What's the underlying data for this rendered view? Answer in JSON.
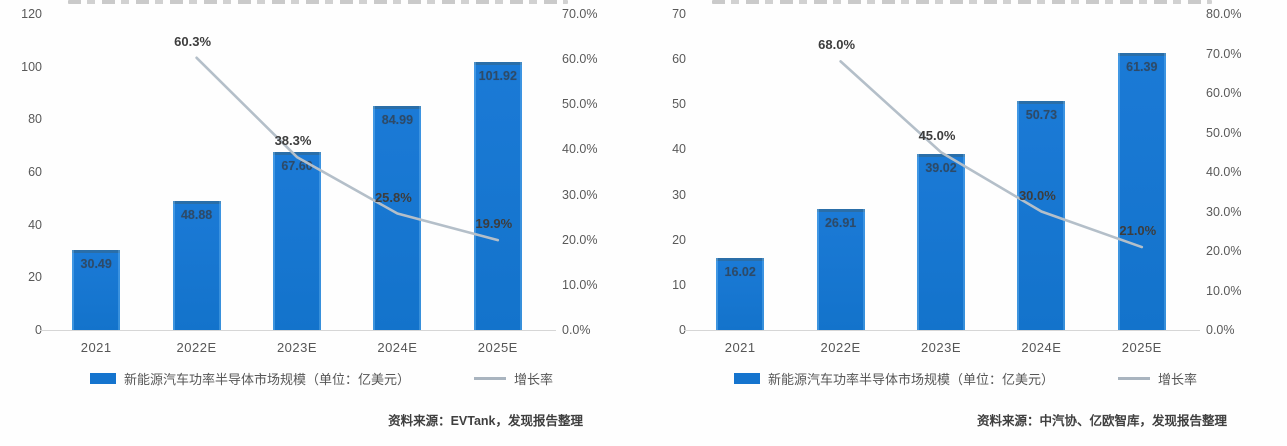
{
  "colors": {
    "bar": "#1574ce",
    "growth_line": "#b4bfc9",
    "axis_text": "#595959",
    "value_label": "#31465c",
    "pct_label": "#3d3d3d",
    "source_text": "#3f3f3f"
  },
  "chart_data": [
    {
      "type": "bar+line",
      "categories": [
        "2021",
        "2022E",
        "2023E",
        "2024E",
        "2025E"
      ],
      "series": [
        {
          "name": "新能源汽车功率半导体市场规模（单位：亿美元）",
          "type": "bar",
          "values": [
            30.49,
            48.88,
            67.6,
            84.99,
            101.92
          ],
          "labels": [
            "30.49",
            "48.88",
            "67.60",
            "84.99",
            "101.92"
          ]
        },
        {
          "name": "增长率",
          "type": "line",
          "start_index": 1,
          "values_pct": [
            60.3,
            38.3,
            25.8,
            19.9
          ],
          "labels": [
            "60.3%",
            "38.3%",
            "25.8%",
            "19.9%"
          ]
        }
      ],
      "left_axis": {
        "max": 120,
        "ticks": [
          "120",
          "100",
          "80",
          "60",
          "40",
          "20",
          "0"
        ]
      },
      "right_axis": {
        "max": 70,
        "ticks": [
          "70.0%",
          "60.0%",
          "50.0%",
          "40.0%",
          "30.0%",
          "20.0%",
          "10.0%",
          "0.0%"
        ]
      },
      "legend_position": "bottom",
      "grid": false,
      "source": "资料来源：EVTank，发现报告整理"
    },
    {
      "type": "bar+line",
      "categories": [
        "2021",
        "2022E",
        "2023E",
        "2024E",
        "2025E"
      ],
      "series": [
        {
          "name": "新能源汽车功率半导体市场规模（单位：亿美元）",
          "type": "bar",
          "values": [
            16.02,
            26.91,
            39.02,
            50.73,
            61.39
          ],
          "labels": [
            "16.02",
            "26.91",
            "39.02",
            "50.73",
            "61.39"
          ]
        },
        {
          "name": "增长率",
          "type": "line",
          "start_index": 1,
          "values_pct": [
            68.0,
            45.0,
            30.0,
            21.0
          ],
          "labels": [
            "68.0%",
            "45.0%",
            "30.0%",
            "21.0%"
          ]
        }
      ],
      "left_axis": {
        "max": 70,
        "ticks": [
          "70",
          "60",
          "50",
          "40",
          "30",
          "20",
          "10",
          "0"
        ]
      },
      "right_axis": {
        "max": 80,
        "ticks": [
          "80.0%",
          "70.0%",
          "60.0%",
          "50.0%",
          "40.0%",
          "30.0%",
          "20.0%",
          "10.0%",
          "0.0%"
        ]
      },
      "legend_position": "bottom",
      "grid": false,
      "source": "资料来源：中汽协、亿欧智库，发现报告整理"
    }
  ]
}
